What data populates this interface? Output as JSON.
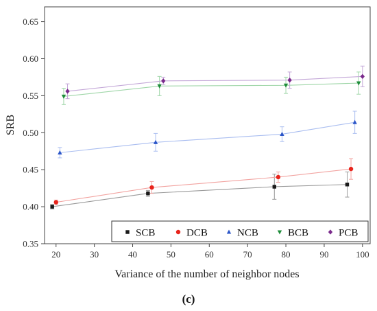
{
  "chart_data": {
    "type": "line",
    "xlabel": "Variance of the number of neighbor nodes",
    "ylabel": "SRB",
    "xlim": [
      17,
      102
    ],
    "ylim": [
      0.35,
      0.67
    ],
    "xticks": [
      20,
      30,
      40,
      50,
      60,
      70,
      80,
      90,
      100
    ],
    "yticks": [
      0.35,
      0.4,
      0.45,
      0.5,
      0.55,
      0.6,
      0.65
    ],
    "legend_placement": "bottom-right",
    "panel_label": "(c)",
    "series": [
      {
        "name": "SCB",
        "color": "#1a1a1a",
        "line_color": "#9a9a9a",
        "marker": "square",
        "points": [
          {
            "x": 19,
            "y": 0.4,
            "err": 0.003
          },
          {
            "x": 44,
            "y": 0.418,
            "err": 0.004
          },
          {
            "x": 77,
            "y": 0.427,
            "err": 0.017
          },
          {
            "x": 96,
            "y": 0.43,
            "err": 0.017
          }
        ]
      },
      {
        "name": "DCB",
        "color": "#e8241c",
        "line_color": "#f2a3a0",
        "marker": "circle",
        "points": [
          {
            "x": 20,
            "y": 0.406,
            "err": 0.003
          },
          {
            "x": 45,
            "y": 0.426,
            "err": 0.008
          },
          {
            "x": 78,
            "y": 0.44,
            "err": 0.007
          },
          {
            "x": 97,
            "y": 0.451,
            "err": 0.014
          }
        ]
      },
      {
        "name": "NCB",
        "color": "#2a55c8",
        "line_color": "#a9bdf0",
        "marker": "triangle-up",
        "points": [
          {
            "x": 21,
            "y": 0.473,
            "err": 0.007
          },
          {
            "x": 46,
            "y": 0.487,
            "err": 0.012
          },
          {
            "x": 79,
            "y": 0.498,
            "err": 0.01
          },
          {
            "x": 98,
            "y": 0.514,
            "err": 0.015
          }
        ]
      },
      {
        "name": "BCB",
        "color": "#1e8c3a",
        "line_color": "#9fd6a8",
        "marker": "triangle-down",
        "points": [
          {
            "x": 22,
            "y": 0.549,
            "err": 0.011
          },
          {
            "x": 47,
            "y": 0.563,
            "err": 0.013
          },
          {
            "x": 80,
            "y": 0.564,
            "err": 0.011
          },
          {
            "x": 99,
            "y": 0.567,
            "err": 0.015
          }
        ]
      },
      {
        "name": "PCB",
        "color": "#7a2a8c",
        "line_color": "#c4a8d8",
        "marker": "diamond",
        "points": [
          {
            "x": 23,
            "y": 0.556,
            "err": 0.01
          },
          {
            "x": 48,
            "y": 0.57,
            "err": 0.005
          },
          {
            "x": 81,
            "y": 0.571,
            "err": 0.011
          },
          {
            "x": 100,
            "y": 0.576,
            "err": 0.014
          }
        ]
      }
    ]
  }
}
